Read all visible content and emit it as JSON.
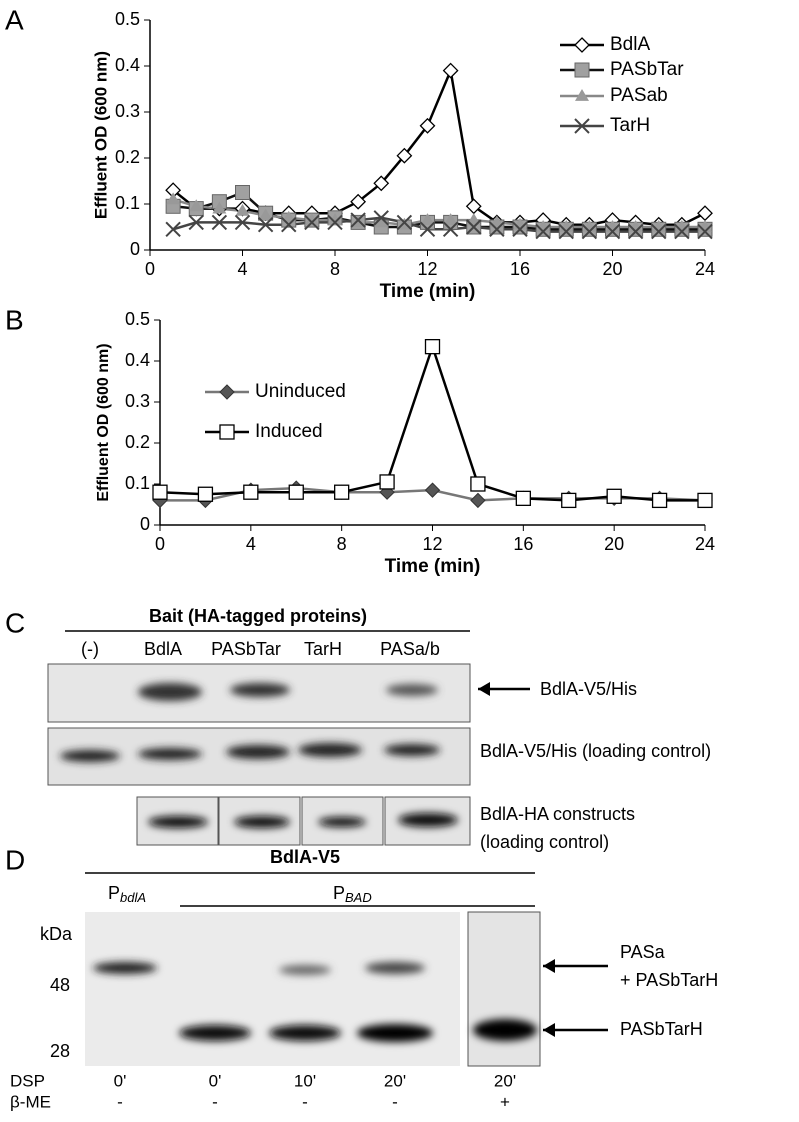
{
  "chart_data": [
    {
      "type": "line",
      "panel": "A",
      "ylabel": "Effluent OD (600 nm)",
      "xlabel": "Time (min)",
      "xlim": [
        0,
        24
      ],
      "xticks": [
        0,
        4,
        8,
        12,
        16,
        20,
        24
      ],
      "ylim": [
        0,
        0.5
      ],
      "yticks": [
        0,
        0.1,
        0.2,
        0.3,
        0.4,
        0.5
      ],
      "x": [
        1,
        2,
        3,
        4,
        5,
        6,
        7,
        8,
        9,
        10,
        11,
        12,
        13,
        14,
        15,
        16,
        17,
        18,
        19,
        20,
        21,
        22,
        23,
        24
      ],
      "series": [
        {
          "name": "BdlA",
          "color": "#000000",
          "marker": "diamond-open",
          "values": [
            0.13,
            0.09,
            0.09,
            0.09,
            0.08,
            0.08,
            0.08,
            0.08,
            0.105,
            0.145,
            0.205,
            0.27,
            0.39,
            0.095,
            0.06,
            0.06,
            0.065,
            0.055,
            0.055,
            0.065,
            0.06,
            0.055,
            0.055,
            0.08
          ]
        },
        {
          "name": "PASbTar",
          "color": "#111111",
          "marker": "square-gray",
          "values": [
            0.095,
            0.09,
            0.105,
            0.125,
            0.08,
            0.065,
            0.065,
            0.07,
            0.06,
            0.05,
            0.05,
            0.06,
            0.06,
            0.05,
            0.05,
            0.05,
            0.045,
            0.045,
            0.045,
            0.045,
            0.045,
            0.045,
            0.045,
            0.045
          ]
        },
        {
          "name": "PASab",
          "color": "#888888",
          "marker": "triangle-gray",
          "values": [
            0.11,
            0.095,
            0.09,
            0.085,
            0.075,
            0.07,
            0.065,
            0.065,
            0.06,
            0.06,
            0.055,
            0.065,
            0.065,
            0.065,
            0.06,
            0.055,
            0.05,
            0.05,
            0.05,
            0.05,
            0.05,
            0.05,
            0.05,
            0.05
          ]
        },
        {
          "name": "TarH",
          "color": "#444444",
          "marker": "cross",
          "values": [
            0.045,
            0.06,
            0.06,
            0.06,
            0.055,
            0.055,
            0.06,
            0.06,
            0.065,
            0.07,
            0.06,
            0.045,
            0.045,
            0.05,
            0.045,
            0.045,
            0.04,
            0.04,
            0.04,
            0.04,
            0.04,
            0.04,
            0.04,
            0.04
          ]
        }
      ]
    },
    {
      "type": "line",
      "panel": "B",
      "ylabel": "Effluent OD (600 nm)",
      "xlabel": "Time (min)",
      "xlim": [
        0,
        24
      ],
      "xticks": [
        0,
        4,
        8,
        12,
        16,
        20,
        24
      ],
      "ylim": [
        0,
        0.5
      ],
      "yticks": [
        0,
        0.1,
        0.2,
        0.3,
        0.4,
        0.5
      ],
      "x": [
        0,
        2,
        4,
        6,
        8,
        10,
        12,
        14,
        16,
        18,
        20,
        22,
        24
      ],
      "series": [
        {
          "name": "Uninduced",
          "color": "#777777",
          "marker": "diamond-dark",
          "values": [
            0.06,
            0.06,
            0.085,
            0.09,
            0.08,
            0.08,
            0.085,
            0.06,
            0.065,
            0.065,
            0.065,
            0.065,
            0.06
          ]
        },
        {
          "name": "Induced",
          "color": "#000000",
          "marker": "square-open",
          "values": [
            0.08,
            0.075,
            0.08,
            0.08,
            0.08,
            0.105,
            0.435,
            0.1,
            0.065,
            0.06,
            0.07,
            0.06,
            0.06
          ]
        }
      ]
    }
  ],
  "panel_c": {
    "label": "C",
    "title": "Bait (HA-tagged proteins)",
    "lanes": [
      "(-)",
      "BdlA",
      "PASbTar",
      "TarH",
      "PASa/b"
    ],
    "row1": "BdlA-V5/His",
    "row2": "BdlA-V5/His (loading control)",
    "row3": [
      "BdlA-HA constructs",
      "(loading control)"
    ]
  },
  "panel_d": {
    "label": "D",
    "title": "BdlA-V5",
    "promoter1": {
      "main": "P",
      "sub": "bdlA"
    },
    "promoter2": {
      "main": "P",
      "sub": "BAD"
    },
    "unit": "kDa",
    "markers": [
      "48",
      "28"
    ],
    "band_upper": [
      "PASa",
      "+ PASbTarH"
    ],
    "band_lower": "PASbTarH",
    "row_labels": [
      "DSP",
      "β-ME"
    ],
    "dsp": [
      "0'",
      "0'",
      "10'",
      "20'",
      "20'"
    ],
    "bme": [
      "-",
      "-",
      "-",
      "-",
      "+"
    ]
  }
}
